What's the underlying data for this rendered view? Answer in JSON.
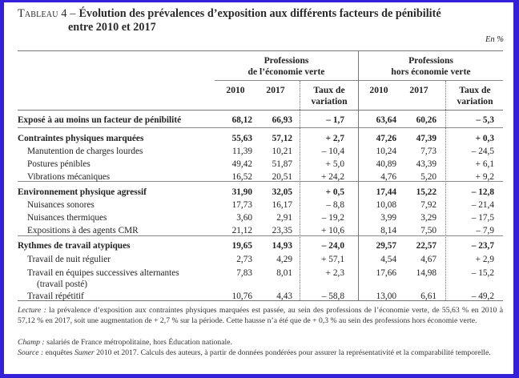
{
  "title": {
    "prefix": "Tableau 4 – ",
    "line1": "Évolution des prévalences d’exposition aux différents facteurs de pénibilité",
    "line2": "entre 2010 et 2017"
  },
  "unit": "En %",
  "groups": [
    {
      "line1": "Professions",
      "line2": "de l’économie verte"
    },
    {
      "line1": "Professions",
      "line2": "hors économie verte"
    }
  ],
  "columns": {
    "y2010": "2010",
    "y2017": "2017",
    "taux_line1": "Taux de",
    "taux_line2": "variation"
  },
  "rows": [
    {
      "label": "Exposé à au moins un facteur de pénibilité",
      "bold": true,
      "eco2010": "68,12",
      "eco2017": "66,93",
      "ecoTaux": "– 1,7",
      "hors2010": "63,64",
      "hors2017": "60,26",
      "horsTaux": "– 5,3"
    },
    {
      "label": "Contraintes physiques marquées",
      "bold": true,
      "eco2010": "55,63",
      "eco2017": "57,12",
      "ecoTaux": "+ 2,7",
      "hors2010": "47,26",
      "hors2017": "47,39",
      "horsTaux": "+ 0,3"
    },
    {
      "label": "Manutention de charges lourdes",
      "bold": false,
      "eco2010": "11,39",
      "eco2017": "10,21",
      "ecoTaux": "– 10,4",
      "hors2010": "10,24",
      "hors2017": "7,73",
      "horsTaux": "– 24,5"
    },
    {
      "label": "Postures pénibles",
      "bold": false,
      "eco2010": "49,42",
      "eco2017": "51,87",
      "ecoTaux": "+ 5,0",
      "hors2010": "40,89",
      "hors2017": "43,39",
      "horsTaux": "+ 6,1"
    },
    {
      "label": "Vibrations mécaniques",
      "bold": false,
      "eco2010": "16,52",
      "eco2017": "20,51",
      "ecoTaux": "+ 24,2",
      "hors2010": "4,76",
      "hors2017": "5,20",
      "horsTaux": "+ 9,2"
    },
    {
      "label": "Environnement physique agressif",
      "bold": true,
      "eco2010": "31,90",
      "eco2017": "32,05",
      "ecoTaux": "+ 0,5",
      "hors2010": "17,44",
      "hors2017": "15,22",
      "horsTaux": "– 12,8"
    },
    {
      "label": "Nuisances sonores",
      "bold": false,
      "eco2010": "17,73",
      "eco2017": "16,17",
      "ecoTaux": "– 8,8",
      "hors2010": "10,08",
      "hors2017": "7,92",
      "horsTaux": "– 21,4"
    },
    {
      "label": "Nuisances thermiques",
      "bold": false,
      "eco2010": "3,60",
      "eco2017": "2,91",
      "ecoTaux": "– 19,2",
      "hors2010": "3,99",
      "hors2017": "3,29",
      "horsTaux": "– 17,5"
    },
    {
      "label": "Expositions à des agents CMR",
      "bold": false,
      "eco2010": "21,12",
      "eco2017": "23,35",
      "ecoTaux": "+ 10,6",
      "hors2010": "8,14",
      "hors2017": "7,50",
      "horsTaux": "– 7,9"
    },
    {
      "label": "Rythmes de travail atypiques",
      "bold": true,
      "eco2010": "19,65",
      "eco2017": "14,93",
      "ecoTaux": "– 24,0",
      "hors2010": "29,57",
      "hors2017": "22,57",
      "horsTaux": "– 23,7"
    },
    {
      "label": "Travail de nuit régulier",
      "bold": false,
      "eco2010": "2,73",
      "eco2017": "4,29",
      "ecoTaux": "+ 57,1",
      "hors2010": "4,54",
      "hors2017": "4,67",
      "horsTaux": "+ 2,9"
    },
    {
      "label": "Travail en équipes successives alternantes",
      "label2": "(travail posté)",
      "bold": false,
      "eco2010": "7,83",
      "eco2017": "8,01",
      "ecoTaux": "+ 2,3",
      "hors2010": "17,66",
      "hors2017": "14,98",
      "horsTaux": "– 15,2"
    },
    {
      "label": "Travail répétitif",
      "bold": false,
      "eco2010": "10,76",
      "eco2017": "4,43",
      "ecoTaux": "– 58,8",
      "hors2010": "13,00",
      "hors2017": "6,61",
      "horsTaux": "– 49,2"
    }
  ],
  "notes": {
    "lecture_label": "Lecture :",
    "lecture_text": " la prévalence d’exposition aux contraintes physiques marquées est passée, au sein des professions de l’économie verte, de 55,63 % en 2010 à 57,12 % en 2017, soit une augmentation de + 2,7 % sur la période. Cette hausse n’a été que de + 0,3 % au sein des professions hors économie verte.",
    "champ_label": "Champ :",
    "champ_text": " salariés de France métropolitaine, hors Éducation nationale.",
    "source_label": "Source :",
    "source_text_before": " enquêtes ",
    "source_italic": "Sumer",
    "source_text_after": " 2010 et 2017. Calculs des auteurs, à partir de données pondérées pour assurer la représentativité et la comparabilité temporelle."
  },
  "colors": {
    "frame": "#3320d8",
    "page": "#ffffff",
    "rules": "#777777"
  }
}
